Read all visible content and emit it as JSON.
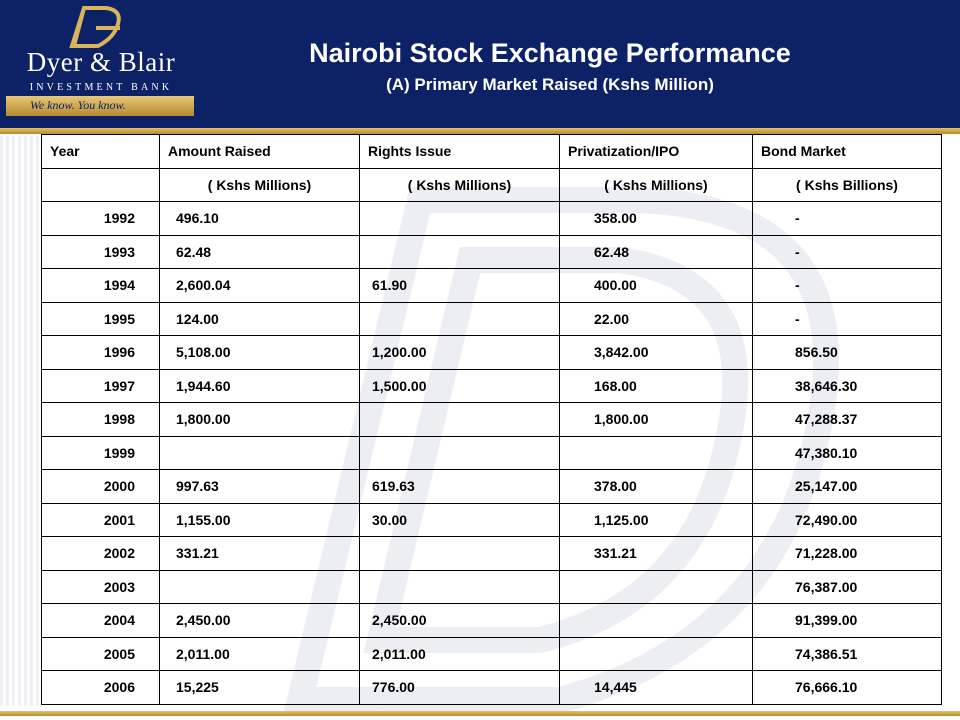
{
  "brand": {
    "name": "Dyer & Blair",
    "subtitle": "INVESTMENT BANK",
    "slogan": "We know. You know.",
    "colors": {
      "navy": "#0d2167",
      "gold": "#c9a24a"
    }
  },
  "title": "Nairobi Stock Exchange Performance",
  "subtitle": "(A) Primary Market Raised (Kshs Million)",
  "table": {
    "headers": [
      "Year",
      "Amount Raised",
      "Rights Issue",
      "Privatization/IPO",
      "Bond Market"
    ],
    "units": [
      "",
      "( Kshs Millions)",
      "( Kshs Millions)",
      "( Kshs Millions)",
      "( Kshs Billions)"
    ],
    "rows": [
      [
        "1992",
        "496.10",
        "",
        "358.00",
        "-"
      ],
      [
        "1993",
        "62.48",
        "",
        "62.48",
        "-"
      ],
      [
        "1994",
        "2,600.04",
        "61.90",
        "400.00",
        "-"
      ],
      [
        "1995",
        "124.00",
        "",
        "22.00",
        "-"
      ],
      [
        "1996",
        "5,108.00",
        "1,200.00",
        "3,842.00",
        "856.50"
      ],
      [
        "1997",
        "1,944.60",
        "1,500.00",
        "168.00",
        "38,646.30"
      ],
      [
        "1998",
        "1,800.00",
        "",
        "1,800.00",
        "47,288.37"
      ],
      [
        "1999",
        "",
        "",
        "",
        "47,380.10"
      ],
      [
        "2000",
        "997.63",
        "619.63",
        "378.00",
        "25,147.00"
      ],
      [
        "2001",
        "1,155.00",
        "30.00",
        "1,125.00",
        "72,490.00"
      ],
      [
        "2002",
        "331.21",
        "",
        "331.21",
        "71,228.00"
      ],
      [
        "2003",
        "",
        "",
        "",
        "76,387.00"
      ],
      [
        "2004",
        "2,450.00",
        "2,450.00",
        "",
        "91,399.00"
      ],
      [
        "2005",
        "2,011.00",
        "2,011.00",
        "",
        "74,386.51"
      ],
      [
        "2006",
        "15,225",
        "776.00",
        "14,445",
        "76,666.10"
      ]
    ]
  }
}
